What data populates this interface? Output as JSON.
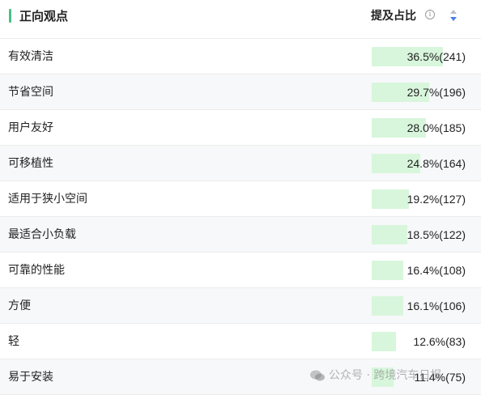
{
  "header": {
    "title": "正向观点",
    "column_title": "提及占比",
    "info_icon": "info-icon",
    "sort_icon": "sort-icon"
  },
  "colors": {
    "accent": "#49c08a",
    "bar": "#d8f6dc",
    "alt_row": "#f7f8fa",
    "sort_active": "#4a7de8"
  },
  "rows": [
    {
      "label": "有效清洁",
      "value": "36.5%(241)",
      "percent": 36.5
    },
    {
      "label": "节省空间",
      "value": "29.7%(196)",
      "percent": 29.7
    },
    {
      "label": "用户友好",
      "value": "28.0%(185)",
      "percent": 28.0
    },
    {
      "label": "可移植性",
      "value": "24.8%(164)",
      "percent": 24.8
    },
    {
      "label": "适用于狭小空间",
      "value": "19.2%(127)",
      "percent": 19.2
    },
    {
      "label": "最适合小负载",
      "value": "18.5%(122)",
      "percent": 18.5
    },
    {
      "label": "可靠的性能",
      "value": "16.4%(108)",
      "percent": 16.4
    },
    {
      "label": "方便",
      "value": "16.1%(106)",
      "percent": 16.1
    },
    {
      "label": "轻",
      "value": "12.6%(83)",
      "percent": 12.6
    },
    {
      "label": "易于安装",
      "value": "11.4%(75)",
      "percent": 11.4
    }
  ],
  "watermark": {
    "text": "公众号 · 跨境汽车日报",
    "icon": "wechat-icon"
  }
}
